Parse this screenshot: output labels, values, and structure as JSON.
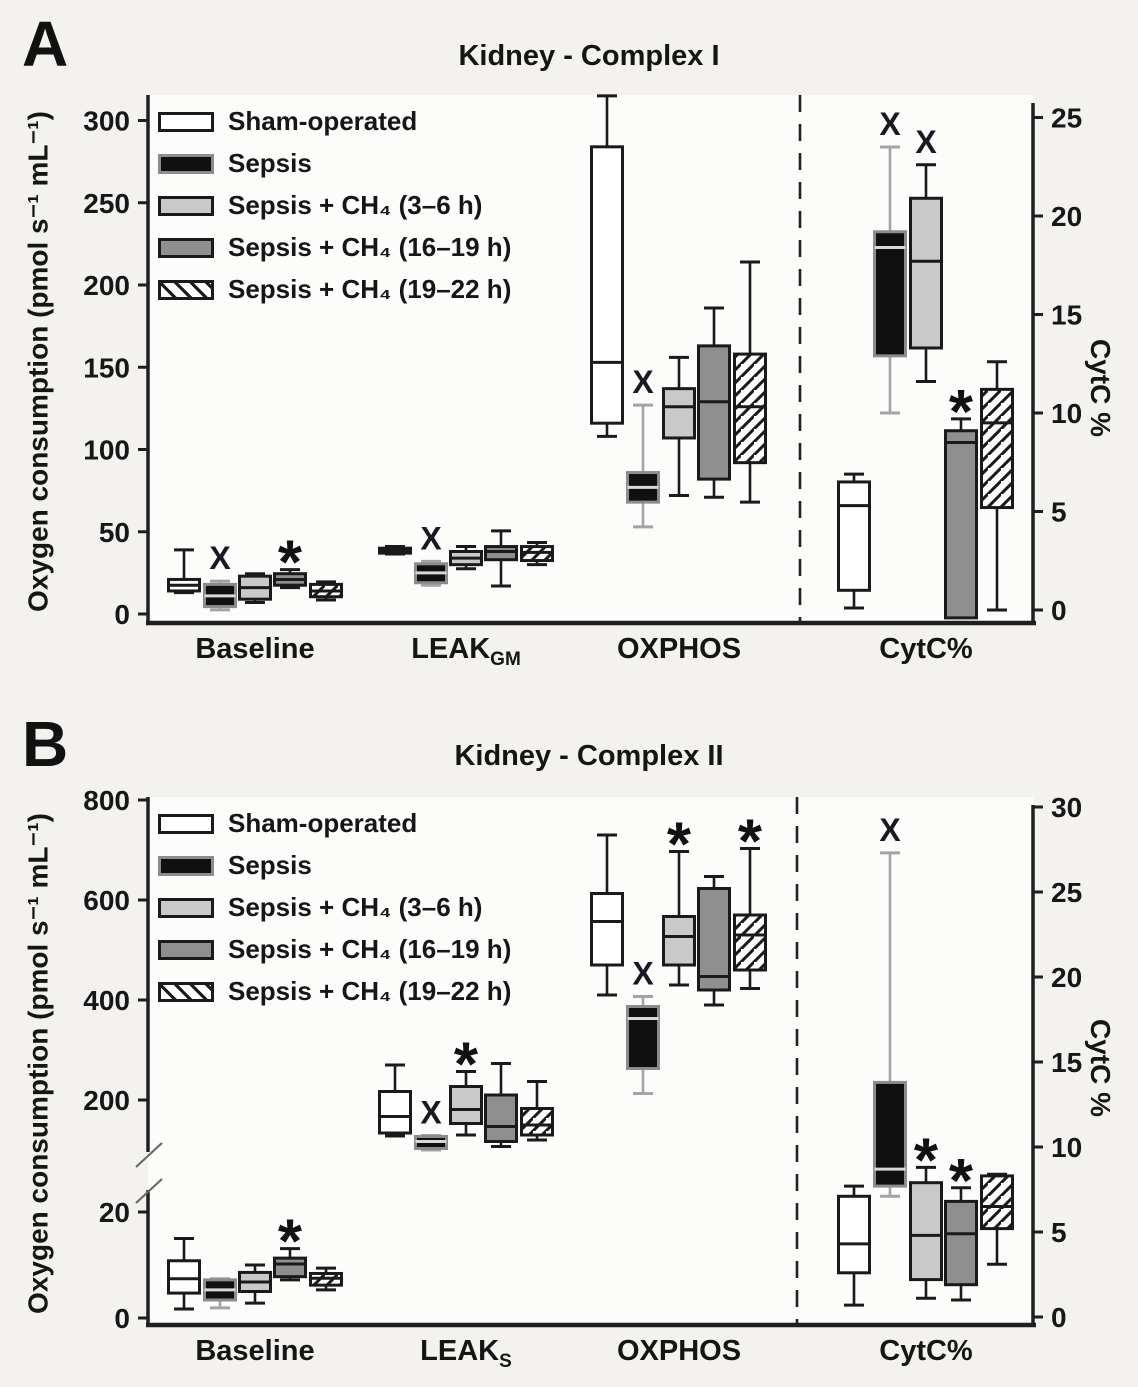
{
  "chart_data": [
    {
      "panel": "A",
      "type": "boxplot",
      "title": "Kidney - Complex I",
      "ylabel_left": "Oxygen consumption (pmol s⁻¹ mL⁻¹)",
      "ylabel_right": "CytC %",
      "legend": [
        "Sham-operated",
        "Sepsis",
        "Sepsis + CH₄ (3–6 h)",
        "Sepsis + CH₄ (16–19 h)",
        "Sepsis + CH₄ (19–22 h)"
      ],
      "left_ticks": [
        0,
        50,
        100,
        150,
        200,
        250,
        300
      ],
      "right_ticks": [
        0,
        5,
        10,
        15,
        20,
        25
      ],
      "left_axis_range": [
        0,
        320
      ],
      "right_axis_range": [
        0,
        26
      ],
      "groups": [
        {
          "label": {
            "pre": "Baseline",
            "sub": ""
          },
          "scale": "left",
          "boxes": [
            {
              "lo": 13,
              "q1": 14,
              "med": 17.5,
              "q3": 21,
              "hi": 39,
              "marker": null
            },
            {
              "lo": 2.5,
              "q1": 4.5,
              "med": 11,
              "q3": 18,
              "hi": 20,
              "marker": "X"
            },
            {
              "lo": 7,
              "q1": 9,
              "med": 16,
              "q3": 23,
              "hi": 24.5,
              "marker": null
            },
            {
              "lo": 16,
              "q1": 17.5,
              "med": 21,
              "q3": 24.5,
              "hi": 27,
              "marker": "*"
            },
            {
              "lo": 8.5,
              "q1": 10.5,
              "med": 14,
              "q3": 18,
              "hi": 19.5,
              "marker": null
            }
          ]
        },
        {
          "label": {
            "pre": "LEAK",
            "sub": "GM"
          },
          "scale": "left",
          "boxes": [
            {
              "lo": 36.5,
              "q1": 37,
              "med": 38.5,
              "q3": 40,
              "hi": 41,
              "marker": null
            },
            {
              "lo": 17.5,
              "q1": 19,
              "med": 25,
              "q3": 30.5,
              "hi": 32,
              "marker": "X"
            },
            {
              "lo": 27.5,
              "q1": 30,
              "med": 34,
              "q3": 38,
              "hi": 41,
              "marker": null
            },
            {
              "lo": 17,
              "q1": 33,
              "med": 38,
              "q3": 41,
              "hi": 50.5,
              "marker": null
            },
            {
              "lo": 30,
              "q1": 32.5,
              "med": 37.5,
              "q3": 41,
              "hi": 43.5,
              "marker": null
            }
          ]
        },
        {
          "label": {
            "pre": "OXPHOS",
            "sub": ""
          },
          "scale": "left",
          "boxes": [
            {
              "lo": 108,
              "q1": 116,
              "med": 153,
              "q3": 284,
              "hi": 315,
              "marker": null
            },
            {
              "lo": 53,
              "q1": 68,
              "med": 77,
              "q3": 86,
              "hi": 127,
              "marker": "X"
            },
            {
              "lo": 72,
              "q1": 107,
              "med": 126,
              "q3": 137,
              "hi": 156,
              "marker": null
            },
            {
              "lo": 71,
              "q1": 82,
              "med": 129,
              "q3": 163,
              "hi": 186,
              "marker": null
            },
            {
              "lo": 68,
              "q1": 92,
              "med": 126,
              "q3": 158,
              "hi": 214,
              "marker": null
            }
          ]
        },
        {
          "label": {
            "pre": "CytC%",
            "sub": ""
          },
          "scale": "right",
          "boxes": [
            {
              "lo": 0.1,
              "q1": 1.0,
              "med": 5.3,
              "q3": 6.5,
              "hi": 6.9,
              "marker": null
            },
            {
              "lo": 10,
              "q1": 12.9,
              "med": 18.4,
              "q3": 19.2,
              "hi": 23.5,
              "marker": "X"
            },
            {
              "lo": 11.6,
              "q1": 13.3,
              "med": 17.7,
              "q3": 20.9,
              "hi": 22.6,
              "marker": "X"
            },
            {
              "lo": -0.4,
              "q1": -0.4,
              "med": 8.5,
              "q3": 9.1,
              "hi": 9.7,
              "marker": "*"
            },
            {
              "lo": 0.0,
              "q1": 5.2,
              "med": 9.5,
              "q3": 11.2,
              "hi": 12.6,
              "marker": null
            }
          ]
        }
      ]
    },
    {
      "panel": "B",
      "type": "boxplot",
      "title": "Kidney - Complex II",
      "ylabel_left": "Oxygen consumption (pmol s⁻¹ mL⁻¹)",
      "ylabel_right": "CytC %",
      "legend": [
        "Sham-operated",
        "Sepsis",
        "Sepsis + CH₄ (3–6 h)",
        "Sepsis + CH₄ (16–19 h)",
        "Sepsis + CH₄ (19–22 h)"
      ],
      "left_lower_ticks": [
        0,
        20
      ],
      "left_upper_ticks": [
        200,
        400,
        600,
        800
      ],
      "right_ticks": [
        0,
        5,
        10,
        15,
        20,
        25,
        30
      ],
      "axis_break": true,
      "left_axis_range": [
        0,
        800
      ],
      "right_axis_range": [
        0,
        30
      ],
      "groups": [
        {
          "label": {
            "pre": "Baseline",
            "sub": ""
          },
          "scale": "left_lower",
          "boxes": [
            {
              "lo": 1.7,
              "q1": 4.7,
              "med": 7.4,
              "q3": 10.8,
              "hi": 15,
              "marker": null
            },
            {
              "lo": 1.9,
              "q1": 3.4,
              "med": 5.3,
              "q3": 7.2,
              "hi": 7.4,
              "marker": null
            },
            {
              "lo": 2.8,
              "q1": 5.0,
              "med": 6.8,
              "q3": 8.6,
              "hi": 10,
              "marker": null
            },
            {
              "lo": 7.2,
              "q1": 7.8,
              "med": 10.2,
              "q3": 11.3,
              "hi": 13.1,
              "marker": "*"
            },
            {
              "lo": 5.3,
              "q1": 6.2,
              "med": 7.5,
              "q3": 8.4,
              "hi": 9.4,
              "marker": null
            }
          ]
        },
        {
          "label": {
            "pre": "LEAK",
            "sub": "S"
          },
          "scale": "left_upper",
          "boxes": [
            {
              "lo": 128,
              "q1": 134,
              "med": 167,
              "q3": 217,
              "hi": 270,
              "marker": null
            },
            {
              "lo": 100,
              "q1": 103,
              "med": 117,
              "q3": 127,
              "hi": 129,
              "marker": "X"
            },
            {
              "lo": 130,
              "q1": 153,
              "med": 181,
              "q3": 227,
              "hi": 257,
              "marker": "*"
            },
            {
              "lo": 107,
              "q1": 117,
              "med": 147,
              "q3": 210,
              "hi": 273,
              "marker": null
            },
            {
              "lo": 120,
              "q1": 130,
              "med": 150,
              "q3": 183,
              "hi": 237,
              "marker": null
            }
          ]
        },
        {
          "label": {
            "pre": "OXPHOS",
            "sub": ""
          },
          "scale": "left_upper",
          "boxes": [
            {
              "lo": 410,
              "q1": 470,
              "med": 557,
              "q3": 613,
              "hi": 730,
              "marker": null
            },
            {
              "lo": 213,
              "q1": 263,
              "med": 363,
              "q3": 387,
              "hi": 407,
              "marker": "X"
            },
            {
              "lo": 430,
              "q1": 470,
              "med": 527,
              "q3": 567,
              "hi": 697,
              "marker": "*"
            },
            {
              "lo": 390,
              "q1": 420,
              "med": 447,
              "q3": 623,
              "hi": 647,
              "marker": null
            },
            {
              "lo": 423,
              "q1": 460,
              "med": 530,
              "q3": 570,
              "hi": 703,
              "marker": "*"
            }
          ]
        },
        {
          "label": {
            "pre": "CytC%",
            "sub": ""
          },
          "scale": "right",
          "boxes": [
            {
              "lo": 0.7,
              "q1": 2.6,
              "med": 4.3,
              "q3": 7.1,
              "hi": 7.7,
              "marker": null
            },
            {
              "lo": 7.1,
              "q1": 7.7,
              "med": 8.7,
              "q3": 13.8,
              "hi": 27.3,
              "marker": "X"
            },
            {
              "lo": 1.1,
              "q1": 2.2,
              "med": 4.8,
              "q3": 7.9,
              "hi": 8.8,
              "marker": "*"
            },
            {
              "lo": 1.0,
              "q1": 1.9,
              "med": 4.9,
              "q3": 6.8,
              "hi": 7.6,
              "marker": "*"
            },
            {
              "lo": 3.1,
              "q1": 5.2,
              "med": 6.5,
              "q3": 8.3,
              "hi": 8.4,
              "marker": null
            }
          ]
        }
      ]
    }
  ]
}
